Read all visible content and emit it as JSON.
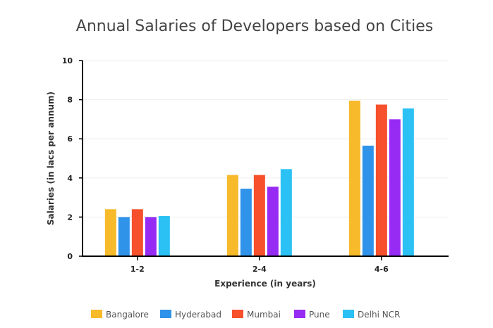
{
  "chart_data": {
    "type": "bar",
    "title": "Annual Salaries of Developers based on Cities",
    "xlabel": "Experience (in years)",
    "ylabel": "Salaries (in lacs per annum)",
    "categories": [
      "1-2",
      "2-4",
      "4-6"
    ],
    "ylim": [
      0,
      10
    ],
    "yticks": [
      "0",
      "2",
      "4",
      "6",
      "8",
      "10"
    ],
    "grid": true,
    "legend_position": "bottom",
    "series": [
      {
        "name": "Bangalore",
        "color": "#F6BA2A",
        "values": [
          2.4,
          4.15,
          7.95
        ]
      },
      {
        "name": "Hyderabad",
        "color": "#2F93E9",
        "values": [
          2.0,
          3.45,
          5.65
        ]
      },
      {
        "name": "Mumbai",
        "color": "#F6502C",
        "values": [
          2.4,
          4.15,
          7.75
        ]
      },
      {
        "name": "Pune",
        "color": "#962BF3",
        "values": [
          2.0,
          3.55,
          7.0
        ]
      },
      {
        "name": "Delhi NCR",
        "color": "#2BC1F5",
        "values": [
          2.05,
          4.45,
          7.55
        ]
      }
    ]
  }
}
